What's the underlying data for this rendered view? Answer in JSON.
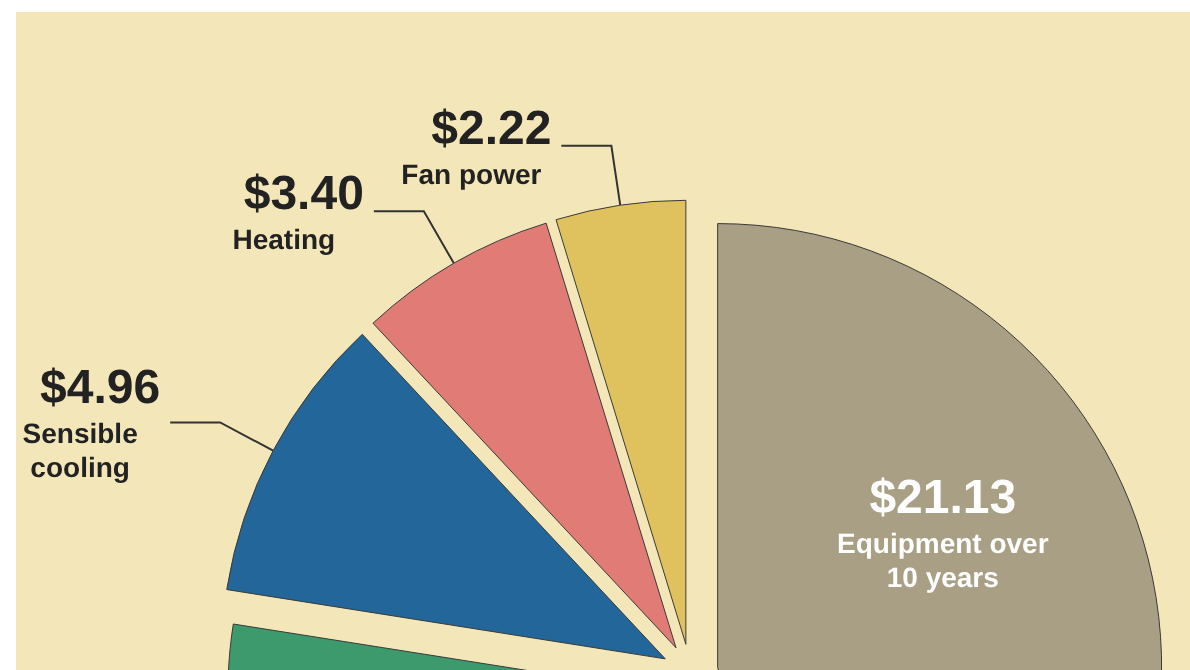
{
  "chart_data": {
    "type": "pie",
    "categories": [
      "Equipment over 10 years",
      null,
      "Sensible cooling",
      "Heating",
      "Fan power"
    ],
    "values": [
      21.13,
      15.3,
      4.96,
      3.4,
      2.22
    ],
    "value_labels": [
      "$21.13",
      null,
      "$4.96",
      "$3.40",
      "$2.22"
    ],
    "colors": [
      "#a89f84",
      "#3c9a6c",
      "#23679a",
      "#e07b76",
      "#dfc25e"
    ],
    "legend": false
  }
}
